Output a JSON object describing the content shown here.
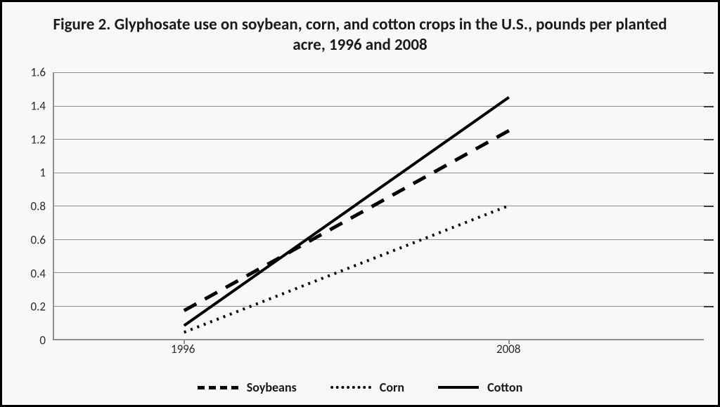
{
  "chart": {
    "type": "line",
    "title": "Figure 2. Glyphosate use on soybean, corn, and cotton crops in the U.S., pounds per planted acre, 1996 and 2008",
    "title_fontsize": 23,
    "title_fontweight": 700,
    "title_color": "#1a1a1a",
    "background_color": "#f8f8f8",
    "frame_border_color": "#000000",
    "frame_border_width": 3,
    "axis_color": "#8f8f8f",
    "axis_width": 2,
    "grid_color": "#8f8f8f",
    "grid_width": 1,
    "tick_mark_color": "#3a3a3a",
    "tick_label_color": "#2b2b2b",
    "tick_label_fontsize": 17,
    "legend_label_fontsize": 18,
    "legend_label_fontweight": 700,
    "x": {
      "categories": [
        "1996",
        "2008"
      ],
      "positions": [
        0.2,
        0.7
      ]
    },
    "y": {
      "min": 0,
      "max": 1.6,
      "tick_step": 0.2,
      "ticks": [
        0,
        0.2,
        0.4,
        0.6,
        0.8,
        1,
        1.2,
        1.4,
        1.6
      ]
    },
    "series": [
      {
        "name": "Soybeans",
        "values": [
          0.17,
          1.25
        ],
        "color": "#000000",
        "line_width": 5,
        "dash": "20 14"
      },
      {
        "name": "Corn",
        "values": [
          0.04,
          0.8
        ],
        "color": "#000000",
        "line_width": 4,
        "dash": "3 7"
      },
      {
        "name": "Cotton",
        "values": [
          0.08,
          1.45
        ],
        "color": "#000000",
        "line_width": 4,
        "dash": "none"
      }
    ]
  }
}
